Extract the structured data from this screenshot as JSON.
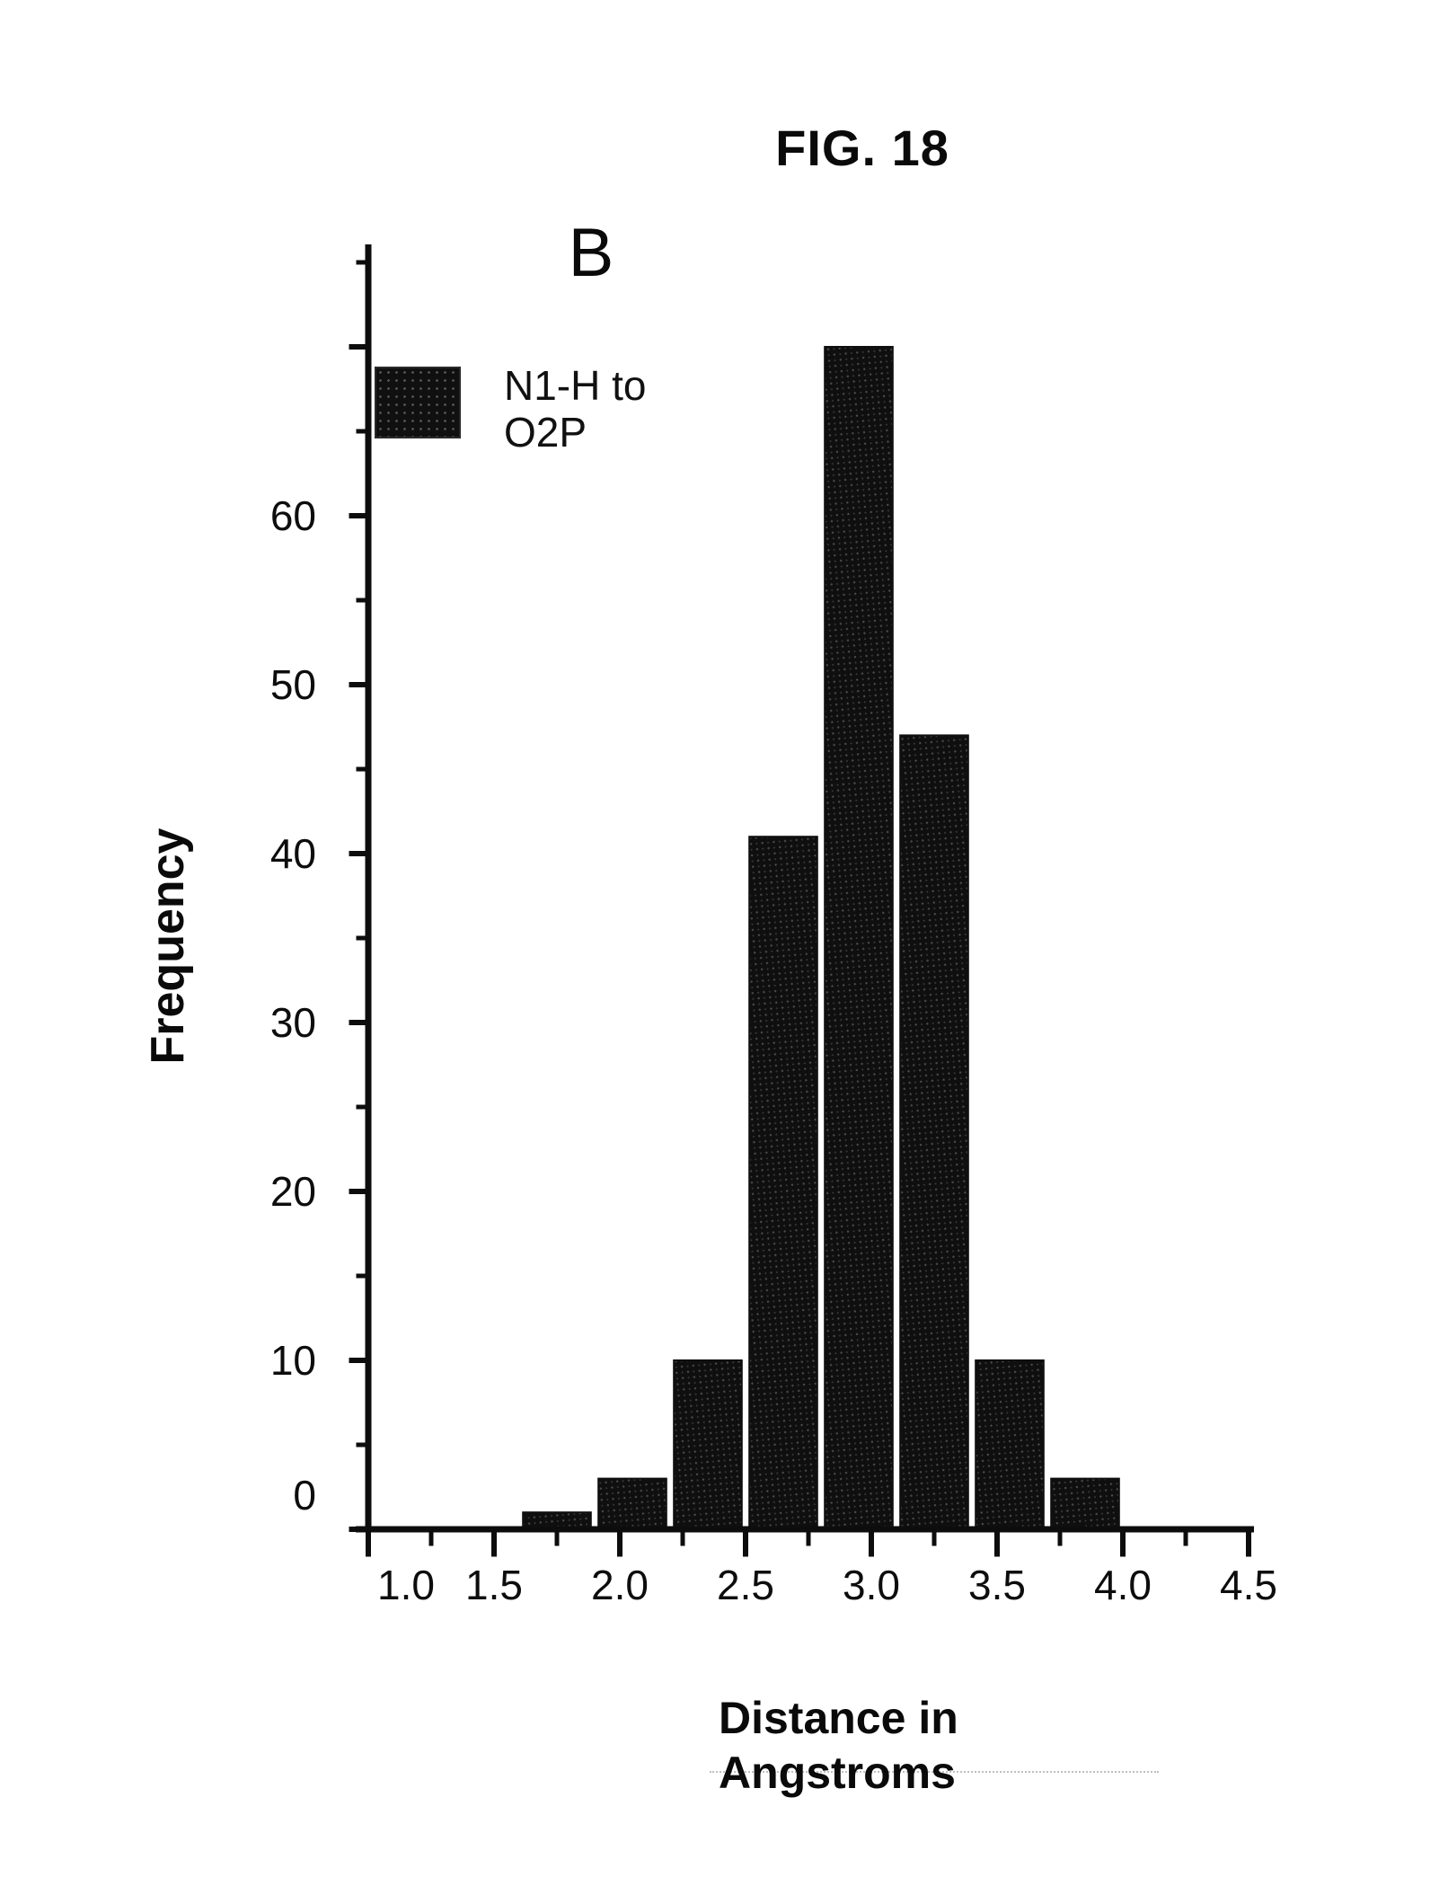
{
  "figure": {
    "title": "FIG. 18",
    "panel_label": "B"
  },
  "legend": {
    "label_lines": [
      "N1-H to",
      "O2P"
    ],
    "swatch_color": "#101010"
  },
  "axes": {
    "ylabel": "Frequency",
    "xlabel_lines": [
      "Distance in",
      "Angstroms"
    ]
  },
  "chart_data": {
    "type": "bar",
    "title": "FIG. 18",
    "panel": "B",
    "xlabel": "Distance in Angstroms",
    "ylabel": "Frequency",
    "series_label": "N1-H to O2P",
    "bin_centers": [
      1.75,
      2.05,
      2.35,
      2.65,
      2.95,
      3.25,
      3.55,
      3.85
    ],
    "bin_width": 0.27,
    "values": [
      1,
      3,
      10,
      41,
      70,
      47,
      10,
      3
    ],
    "x_major_ticks": [
      1.0,
      1.5,
      2.0,
      2.5,
      3.0,
      3.5,
      4.0,
      4.5
    ],
    "x_tick_labels": [
      "1.0",
      "1.5",
      "2.0",
      "2.5",
      "3.0",
      "3.5",
      "4.0",
      "4.5"
    ],
    "x_minor_step": 0.25,
    "y_major_ticks": [
      0,
      10,
      20,
      30,
      40,
      50,
      60
    ],
    "y_tick_labels": [
      "0",
      "10",
      "20",
      "30",
      "40",
      "50",
      "60"
    ],
    "y_minor_step": 5,
    "xlim": [
      1.0,
      4.5
    ],
    "ylim": [
      0,
      75
    ],
    "bar_color": "#0f0f0f",
    "axis_color": "#0d0d0d",
    "grid": false,
    "legend_position": "upper-left"
  }
}
